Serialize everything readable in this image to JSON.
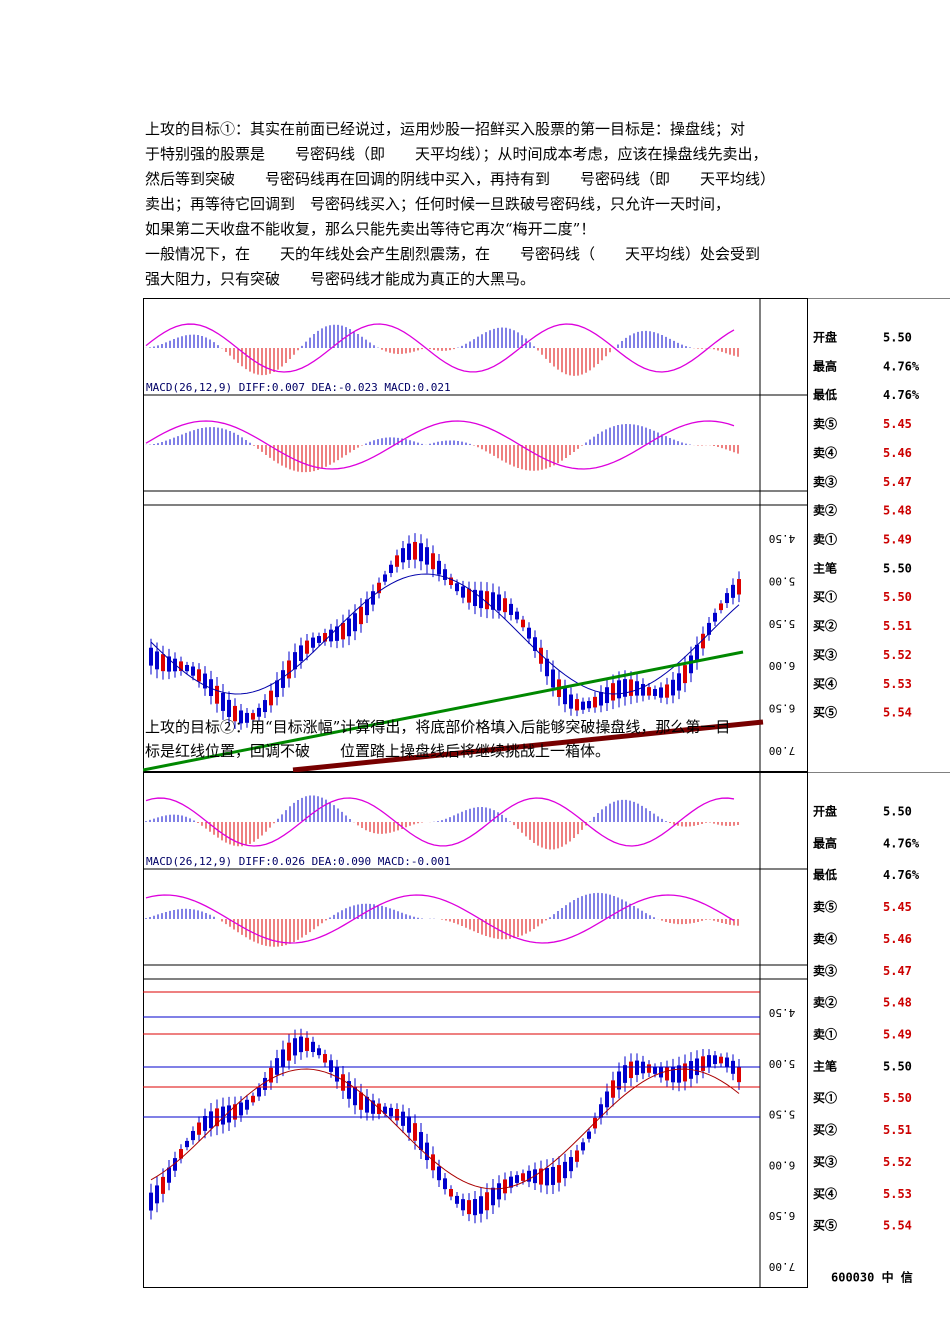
{
  "paragraphs": [
    {
      "lines": [
        "上攻的目标①：其实在前面已经说过，运用炒股一招鲜买入股票的第一目标是：操盘线；对",
        "于特别强的股票是　　号密码线（即　　天平均线）；从时间成本考虑，应该在操盘线先卖出，",
        "然后等到突破　　号密码线再在回调的阴线中买入，再持有到　　号密码线（即　　天平均线）",
        "卖出；再等待它回调到　号密码线买入；任何时候一旦跌破号密码线，只允许一天时间，",
        "如果第二天收盘不能收复，那么只能先卖出等待它再次“梅开二度”！"
      ]
    },
    {
      "lines": [
        "一般情况下，在　　天的年线处会产生剧烈震荡，在　　号密码线（　　天平均线）处会受到",
        "强大阻力，只有突破　　号密码线才能成为真正的大黑马。"
      ]
    },
    {
      "lines": [
        "上攻的目标②：用“目标涨幅”计算得出，将底部价格填入后能够突破操盘线，那么第一目",
        "标是红线位置，回调不破　　位置踏上操盘线后将继续挑战上一箱体。"
      ]
    }
  ],
  "figures": [
    {
      "price_labels": [
        "4.50",
        "5.00",
        "5.50",
        "6.00",
        "6.50",
        "7.00"
      ],
      "macd_label": "MACD(26,12,9) DIFF:0.007 DEA:-0.023 MACD:0.021",
      "side_rows": [
        [
          "开盘",
          "5.50"
        ],
        [
          "最高",
          "4.76%"
        ],
        [
          "最低",
          "4.76%"
        ],
        [
          "卖⑤",
          "5.45"
        ],
        [
          "卖④",
          "5.46"
        ],
        [
          "卖③",
          "5.47"
        ],
        [
          "卖②",
          "5.48"
        ],
        [
          "卖①",
          "5.49"
        ],
        [
          "主笔",
          "5.50"
        ],
        [
          "买①",
          "5.50"
        ],
        [
          "买②",
          "5.51"
        ],
        [
          "买③",
          "5.52"
        ],
        [
          "买④",
          "5.53"
        ],
        [
          "买⑤",
          "5.54"
        ]
      ]
    },
    {
      "price_labels": [
        "4.50",
        "5.00",
        "5.50",
        "6.00",
        "6.50",
        "7.00"
      ],
      "macd_label": "MACD(26,12,9) DIFF:0.026 DEA:0.090 MACD:-0.001",
      "side_rows": [
        [
          "开盘",
          "5.50"
        ],
        [
          "最高",
          "4.76%"
        ],
        [
          "最低",
          "4.76%"
        ],
        [
          "卖⑤",
          "5.45"
        ],
        [
          "卖④",
          "5.46"
        ],
        [
          "卖③",
          "5.47"
        ],
        [
          "卖②",
          "5.48"
        ],
        [
          "卖①",
          "5.49"
        ],
        [
          "主笔",
          "5.50"
        ],
        [
          "买①",
          "5.50"
        ],
        [
          "买②",
          "5.51"
        ],
        [
          "买③",
          "5.52"
        ],
        [
          "买④",
          "5.53"
        ],
        [
          "买⑤",
          "5.54"
        ]
      ],
      "footer": "600030 中 信"
    }
  ]
}
